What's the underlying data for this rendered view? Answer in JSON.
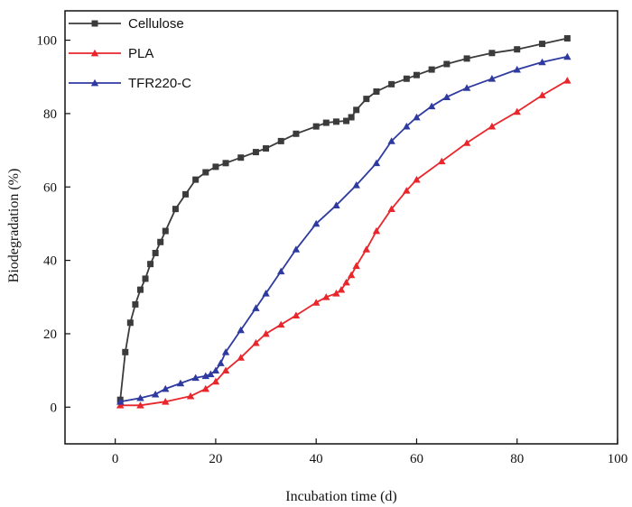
{
  "chart_data": {
    "type": "line",
    "xlabel": "Incubation time (d)",
    "ylabel": "Biodegradation (%)",
    "xlim": [
      -10,
      100
    ],
    "ylim": [
      -10,
      108
    ],
    "xticks": [
      0,
      20,
      40,
      60,
      80,
      100
    ],
    "yticks": [
      0,
      20,
      40,
      60,
      80,
      100
    ],
    "grid": false,
    "legend_position": "top-left",
    "series": [
      {
        "name": "Cellulose",
        "color": "#3b3b3b",
        "marker": "square",
        "x": [
          1,
          2,
          3,
          4,
          5,
          6,
          7,
          8,
          9,
          10,
          12,
          14,
          16,
          18,
          20,
          22,
          25,
          28,
          30,
          33,
          36,
          40,
          42,
          44,
          46,
          47,
          48,
          50,
          52,
          55,
          58,
          60,
          63,
          66,
          70,
          75,
          80,
          85,
          90
        ],
        "y": [
          2,
          15,
          23,
          28,
          32,
          35,
          39,
          42,
          45,
          48,
          54,
          58,
          62,
          64,
          65.5,
          66.5,
          68,
          69.5,
          70.5,
          72.5,
          74.5,
          76.5,
          77.5,
          77.8,
          78,
          79,
          81,
          84,
          86,
          88,
          89.5,
          90.5,
          92,
          93.5,
          95,
          96.5,
          97.5,
          99,
          100.5
        ]
      },
      {
        "name": "PLA",
        "color": "#e8262b",
        "marker": "triangle",
        "x": [
          1,
          5,
          10,
          15,
          18,
          20,
          22,
          25,
          28,
          30,
          33,
          36,
          40,
          42,
          44,
          45,
          46,
          47,
          48,
          50,
          52,
          55,
          58,
          60,
          65,
          70,
          75,
          80,
          85,
          90
        ],
        "y": [
          0.5,
          0.5,
          1.5,
          3,
          5,
          7,
          10,
          13.5,
          17.5,
          20,
          22.5,
          25,
          28.5,
          30,
          31,
          32,
          34,
          36,
          38.5,
          43,
          48,
          54,
          59,
          62,
          67,
          72,
          76.5,
          80.5,
          85,
          89
        ]
      },
      {
        "name": "TFR220-C",
        "color": "#2f3aa0",
        "marker": "triangle",
        "x": [
          1,
          5,
          8,
          10,
          13,
          16,
          18,
          19,
          20,
          21,
          22,
          25,
          28,
          30,
          33,
          36,
          40,
          44,
          48,
          52,
          55,
          58,
          60,
          63,
          66,
          70,
          75,
          80,
          85,
          90
        ],
        "y": [
          1.5,
          2.5,
          3.5,
          5,
          6.5,
          8,
          8.5,
          9,
          10,
          12,
          15,
          21,
          27,
          31,
          37,
          43,
          50,
          55,
          60.5,
          66.5,
          72.5,
          76.5,
          79,
          82,
          84.5,
          87,
          89.5,
          92,
          94,
          95.5
        ]
      }
    ]
  }
}
